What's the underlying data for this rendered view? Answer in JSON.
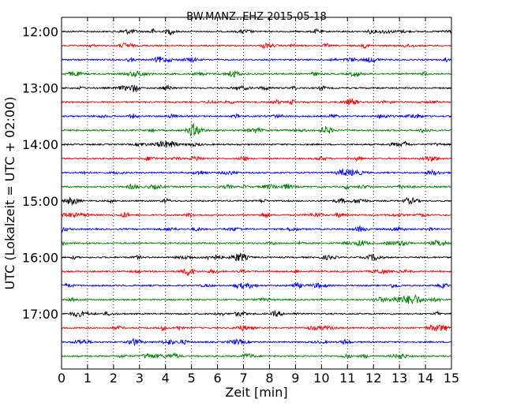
{
  "chart_data": {
    "type": "line",
    "title": "BW.MANZ..EHZ 2015-05-18",
    "xlabel": "Zeit  [min]",
    "ylabel": "UTC (Lokalzeit = UTC + 02:00)",
    "xlim": [
      0,
      15
    ],
    "x_ticks": [
      "0",
      "1",
      "2",
      "3",
      "4",
      "5",
      "6",
      "7",
      "8",
      "9",
      "10",
      "11",
      "12",
      "13",
      "14",
      "15"
    ],
    "y_ticks": [
      "12:00",
      "13:00",
      "14:00",
      "15:00",
      "16:00",
      "17:00"
    ],
    "grid": "vertical dotted lines at each minute",
    "trace_start_times": [
      "12:00",
      "12:15",
      "12:30",
      "12:45",
      "13:00",
      "13:15",
      "13:30",
      "13:45",
      "14:00",
      "14:15",
      "14:30",
      "14:45",
      "15:00",
      "15:15",
      "15:30",
      "15:45",
      "16:00",
      "16:15",
      "16:30",
      "16:45",
      "17:00",
      "17:15",
      "17:30",
      "17:45"
    ],
    "trace_colors": [
      "#000000",
      "#ff0000",
      "#0000ff",
      "#008000"
    ],
    "series": [
      {
        "start": "12:00",
        "duration_min": 15
      },
      {
        "start": "12:15",
        "duration_min": 15
      },
      {
        "start": "12:30",
        "duration_min": 15
      },
      {
        "start": "12:45",
        "duration_min": 15
      },
      {
        "start": "13:00",
        "duration_min": 15
      },
      {
        "start": "13:15",
        "duration_min": 15
      },
      {
        "start": "13:30",
        "duration_min": 15
      },
      {
        "start": "13:45",
        "duration_min": 15
      },
      {
        "start": "14:00",
        "duration_min": 15
      },
      {
        "start": "14:15",
        "duration_min": 15
      },
      {
        "start": "14:30",
        "duration_min": 15
      },
      {
        "start": "14:45",
        "duration_min": 15
      },
      {
        "start": "15:00",
        "duration_min": 15
      },
      {
        "start": "15:15",
        "duration_min": 15
      },
      {
        "start": "15:30",
        "duration_min": 15
      },
      {
        "start": "15:45",
        "duration_min": 15
      },
      {
        "start": "16:00",
        "duration_min": 15
      },
      {
        "start": "16:15",
        "duration_min": 15
      },
      {
        "start": "16:30",
        "duration_min": 15
      },
      {
        "start": "16:45",
        "duration_min": 15
      },
      {
        "start": "17:00",
        "duration_min": 15
      },
      {
        "start": "17:15",
        "duration_min": 15
      },
      {
        "start": "17:30",
        "duration_min": 15
      },
      {
        "start": "17:45",
        "duration_min": 15
      }
    ]
  }
}
